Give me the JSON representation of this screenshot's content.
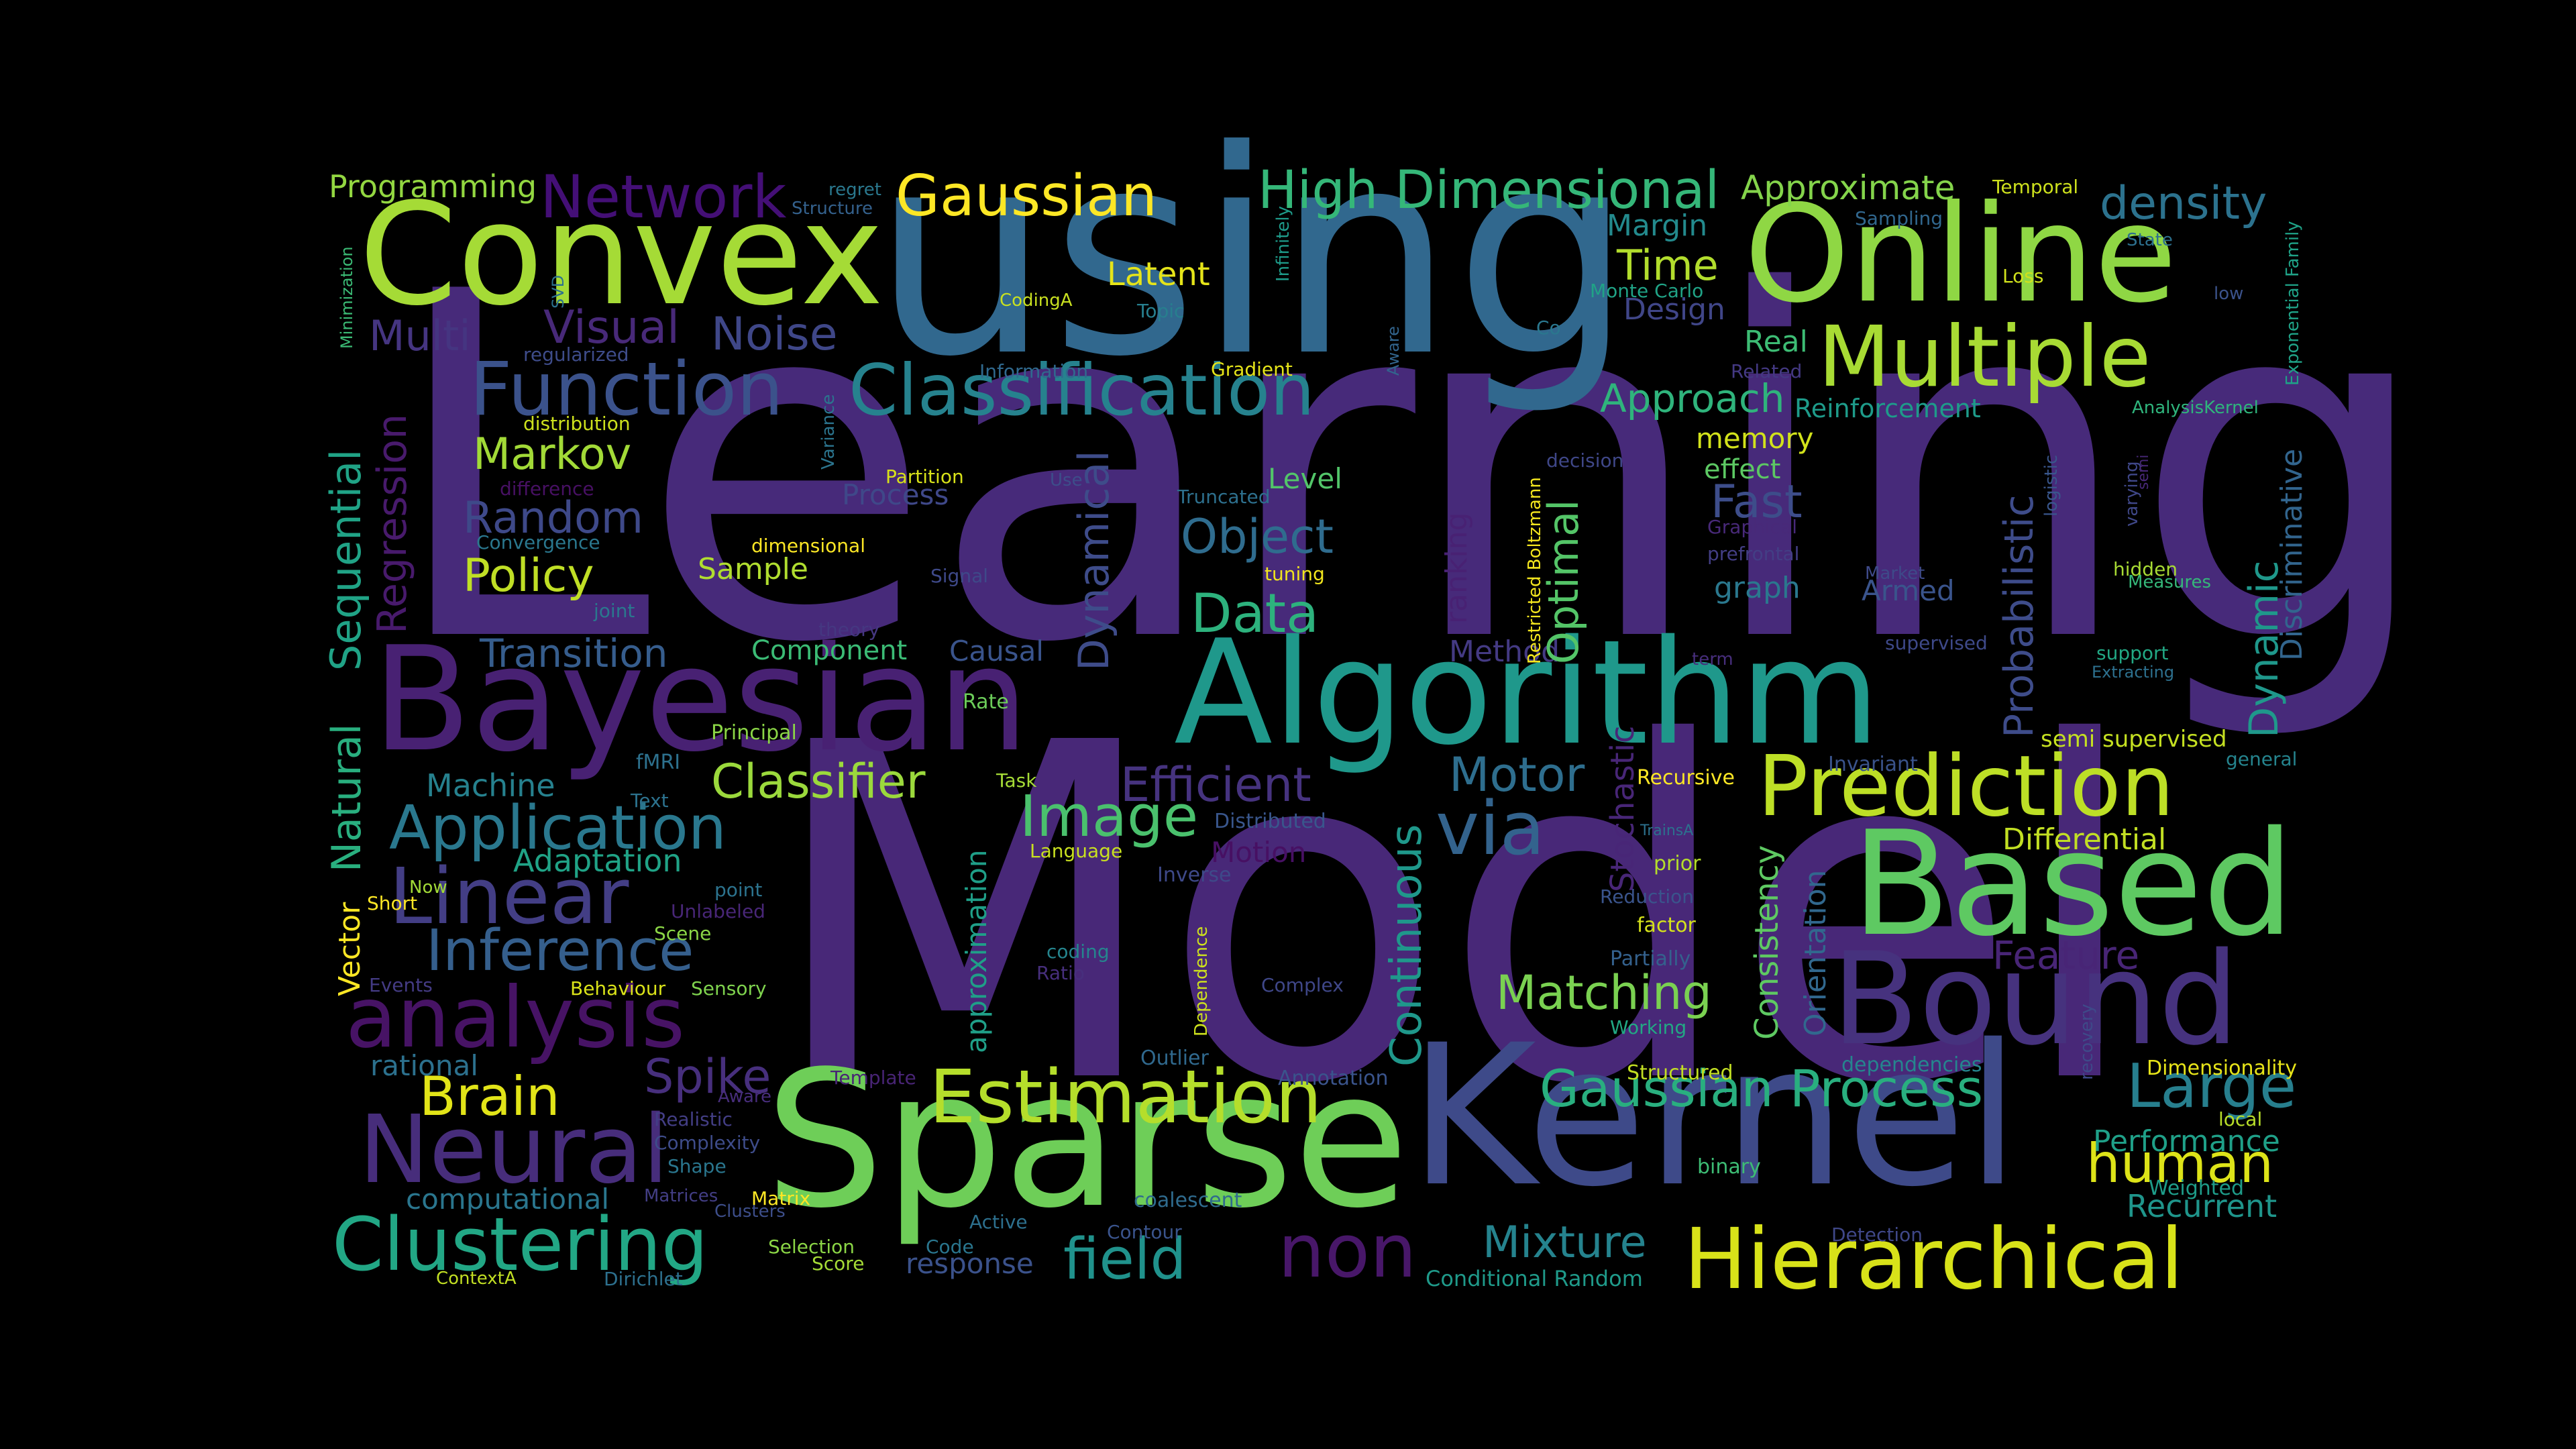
{
  "title": "Word cloud",
  "words": {
    "learning": {
      "text": "Learning",
      "color": "#472a7a"
    },
    "model": {
      "text": "Model",
      "color": "#482878"
    },
    "using": {
      "text": "using",
      "color": "#31688e"
    },
    "convex": {
      "text": "Convex",
      "color": "#a5db36"
    },
    "online": {
      "text": "Online",
      "color": "#8fd744"
    },
    "sparse": {
      "text": "Sparse",
      "color": "#6ece58"
    },
    "kernel": {
      "text": "Kernel",
      "color": "#3e4a89"
    },
    "bayesian": {
      "text": "Bayesian",
      "color": "#482173"
    },
    "algorithm": {
      "text": "Algorithm",
      "color": "#1f988b"
    },
    "based": {
      "text": "Based",
      "color": "#5ec962"
    },
    "bound": {
      "text": "Bound",
      "color": "#46327e"
    },
    "prediction": {
      "text": "Prediction",
      "color": "#bddf26"
    },
    "multiple": {
      "text": "Multiple",
      "color": "#a8db34"
    },
    "classification": {
      "text": "Classification",
      "color": "#26828e"
    },
    "function": {
      "text": "Function",
      "color": "#3b528b"
    },
    "hierarchical": {
      "text": "Hierarchical",
      "color": "#d8e219"
    },
    "estimation": {
      "text": "Estimation",
      "color": "#b5de2b"
    },
    "neural": {
      "text": "Neural",
      "color": "#472d7b"
    },
    "clustering": {
      "text": "Clustering",
      "color": "#22a785"
    },
    "analysis": {
      "text": "analysis",
      "color": "#471365"
    },
    "linear": {
      "text": "Linear",
      "color": "#433e85"
    },
    "inference": {
      "text": "Inference",
      "color": "#355f8d"
    },
    "application": {
      "text": "Application",
      "color": "#2a788e"
    },
    "network": {
      "text": "Network",
      "color": "#440f76"
    },
    "gaussian": {
      "text": "Gaussian",
      "color": "#fde725"
    },
    "high_dimensional": {
      "text": "High Dimensional",
      "color": "#35b779"
    },
    "approximate": {
      "text": "Approximate",
      "color": "#84d44b"
    },
    "density": {
      "text": "density",
      "color": "#2c728e"
    },
    "gaussian_process": {
      "text": "Gaussian Process",
      "color": "#29af7f"
    },
    "large": {
      "text": "Large",
      "color": "#277f8e"
    },
    "human": {
      "text": "human",
      "color": "#dde318"
    },
    "field": {
      "text": "field",
      "color": "#20928c"
    },
    "non": {
      "text": "non",
      "color": "#481769"
    },
    "mixture": {
      "text": "Mixture",
      "color": "#25838e"
    },
    "matching": {
      "text": "Matching",
      "color": "#7ad151"
    },
    "image": {
      "text": "Image",
      "color": "#4ac16d"
    },
    "via": {
      "text": "via",
      "color": "#33638d"
    },
    "motor": {
      "text": "Motor",
      "color": "#2e6e8e"
    },
    "efficient": {
      "text": "Efficient",
      "color": "#46337f"
    },
    "classifier": {
      "text": "Classifier",
      "color": "#9bd93c"
    },
    "brain": {
      "text": "Brain",
      "color": "#e2e418"
    },
    "spike": {
      "text": "Spike",
      "color": "#472f7d"
    },
    "data": {
      "text": "Data",
      "color": "#2db27d"
    },
    "object": {
      "text": "Object",
      "color": "#2f6c8e"
    },
    "policy": {
      "text": "Policy",
      "color": "#c0df25"
    },
    "markov": {
      "text": "Markov",
      "color": "#a2da37"
    },
    "random": {
      "text": "Random",
      "color": "#3e4989"
    },
    "noise": {
      "text": "Noise",
      "color": "#3f4788"
    },
    "multi": {
      "text": "Multi",
      "color": "#453581"
    },
    "visual": {
      "text": "Visual",
      "color": "#482979"
    },
    "time": {
      "text": "Time",
      "color": "#b2dd2d"
    },
    "approach": {
      "text": "Approach",
      "color": "#2fb47c"
    },
    "fast": {
      "text": "Fast",
      "color": "#3d4d8a"
    },
    "transition": {
      "text": "Transition",
      "color": "#365d8d"
    },
    "latent": {
      "text": "Latent",
      "color": "#e5e419"
    },
    "programming": {
      "text": "Programming",
      "color": "#93d741"
    },
    "performance": {
      "text": "Performance",
      "color": "#1fa088"
    },
    "recurrent": {
      "text": "Recurrent",
      "color": "#1f958b"
    },
    "differential": {
      "text": "Differential",
      "color": "#c2df23"
    },
    "feature": {
      "text": "Feature",
      "color": "#482576"
    },
    "adaptation": {
      "text": "Adaptation",
      "color": "#20a386"
    },
    "machine": {
      "text": "Machine",
      "color": "#26818e"
    },
    "component": {
      "text": "Component",
      "color": "#3bbb75"
    },
    "causal": {
      "text": "Causal",
      "color": "#3a548c"
    },
    "sample": {
      "text": "Sample",
      "color": "#b0dd2f"
    },
    "method": {
      "text": "Method",
      "color": "#443a83"
    },
    "margin": {
      "text": "Margin",
      "color": "#238a8d"
    },
    "design": {
      "text": "Design",
      "color": "#404688"
    },
    "real": {
      "text": "Real",
      "color": "#3dbc74"
    },
    "memory": {
      "text": "memory",
      "color": "#d2e21b"
    },
    "effect": {
      "text": "effect",
      "color": "#5cc863"
    },
    "level": {
      "text": "Level",
      "color": "#52c569"
    },
    "motion": {
      "text": "Motion",
      "color": "#471063"
    },
    "reinforcement": {
      "text": "Reinforcement",
      "color": "#1e9b8a"
    },
    "armed": {
      "text": "Armed",
      "color": "#3a548c"
    },
    "graph": {
      "text": "graph",
      "color": "#2a788e"
    },
    "rational": {
      "text": "rational",
      "color": "#2c718e"
    },
    "computational": {
      "text": "computational",
      "color": "#2a768e"
    },
    "response": {
      "text": "response",
      "color": "#3b528b"
    },
    "conditional_random": {
      "text": "Conditional Random",
      "color": "#1f9a8a"
    },
    "process": {
      "text": "Process",
      "color": "#3f4889"
    },
    "rate": {
      "text": "Rate",
      "color": "#6ccd5a"
    },
    "principal": {
      "text": "Principal",
      "color": "#8bd646"
    },
    "fmri": {
      "text": "fMRI",
      "color": "#2d718e"
    },
    "text": {
      "text": "Text",
      "color": "#2c728e"
    },
    "task": {
      "text": "Task",
      "color": "#a5db36"
    },
    "recursive": {
      "text": "Recursive",
      "color": "#fde725"
    },
    "invariant": {
      "text": "Invariant",
      "color": "#3a538b"
    },
    "semi_supervised": {
      "text": "semi supervised",
      "color": "#c5e021"
    },
    "general": {
      "text": "general",
      "color": "#25848e"
    },
    "distributed": {
      "text": "Distributed",
      "color": "#39568c"
    },
    "language": {
      "text": "Language",
      "color": "#c8e020"
    },
    "inverse": {
      "text": "Inverse",
      "color": "#3e4989"
    },
    "prior": {
      "text": "prior",
      "color": "#b5de2b"
    },
    "reduction": {
      "text": "Reduction",
      "color": "#3a548c"
    },
    "factor": {
      "text": "factor",
      "color": "#d5e21a"
    },
    "partially": {
      "text": "Partially",
      "color": "#34618d"
    },
    "working": {
      "text": "Working",
      "color": "#22a884"
    },
    "structured": {
      "text": "Structured",
      "color": "#c2df23"
    },
    "dependencies": {
      "text": "dependencies",
      "color": "#25858e"
    },
    "binary": {
      "text": "binary",
      "color": "#3dbc74"
    },
    "weighted": {
      "text": "Weighted",
      "color": "#1e9c89"
    },
    "local": {
      "text": "local",
      "color": "#b8de29"
    },
    "dimensionality": {
      "text": "Dimensionality",
      "color": "#e7e419"
    },
    "detection": {
      "text": "Detection",
      "color": "#3f4788"
    },
    "coalescent": {
      "text": "coalescent",
      "color": "#2f6b8e"
    },
    "annotation": {
      "text": "Annotation",
      "color": "#3a548c"
    },
    "outlier": {
      "text": "Outlier",
      "color": "#30698e"
    },
    "active": {
      "text": "Active",
      "color": "#2d708e"
    },
    "contour": {
      "text": "Contour",
      "color": "#3a548c"
    },
    "code": {
      "text": "Code",
      "color": "#2a768e"
    },
    "template": {
      "text": "Template",
      "color": "#482475"
    },
    "complex": {
      "text": "Complex",
      "color": "#3f4788"
    },
    "ratio": {
      "text": "Ratio",
      "color": "#472f7d"
    },
    "coding": {
      "text": "coding",
      "color": "#25858e"
    },
    "scene": {
      "text": "Scene",
      "color": "#8bd646"
    },
    "sensory": {
      "text": "Sensory",
      "color": "#7fd34e"
    },
    "behaviour": {
      "text": "Behaviour",
      "color": "#dae319"
    },
    "short": {
      "text": "Short",
      "color": "#fde725"
    },
    "events": {
      "text": "Events",
      "color": "#443b84"
    },
    "unlabeled": {
      "text": "Unlabeled",
      "color": "#482677"
    },
    "point": {
      "text": "point",
      "color": "#2c738e"
    },
    "now": {
      "text": "Now",
      "color": "#a2da37"
    },
    "aware": {
      "text": "Aware",
      "color": "#472d7b"
    },
    "realistic": {
      "text": "Realistic",
      "color": "#433e85"
    },
    "complexity": {
      "text": "Complexity",
      "color": "#3e4c8a"
    },
    "shape": {
      "text": "Shape",
      "color": "#2a768e"
    },
    "matrices": {
      "text": "Matrices",
      "color": "#433e85"
    },
    "clusters": {
      "text": "Clusters",
      "color": "#3d4e8a"
    },
    "matrix": {
      "text": "Matrix",
      "color": "#fde725"
    },
    "selection": {
      "text": "Selection",
      "color": "#8bd646"
    },
    "score": {
      "text": "Score",
      "color": "#a5db36"
    },
    "dirichlet": {
      "text": "Dirichlet",
      "color": "#2d708e"
    },
    "contexta": {
      "text": "ContextA",
      "color": "#c2df23"
    },
    "regret": {
      "text": "regret",
      "color": "#2a788e"
    },
    "structure": {
      "text": "Structure",
      "color": "#34618d"
    },
    "sampling": {
      "text": "Sampling",
      "color": "#31678e"
    },
    "temporal": {
      "text": "Temporal",
      "color": "#cde11d"
    },
    "loss": {
      "text": "Loss",
      "color": "#d0e11c"
    },
    "low": {
      "text": "low",
      "color": "#3b528b"
    },
    "state": {
      "text": "State",
      "color": "#2d708e"
    },
    "monte_carlo": {
      "text": "Monte Carlo",
      "color": "#20a386"
    },
    "co": {
      "text": "Co",
      "color": "#2a778e"
    },
    "related": {
      "text": "Related",
      "color": "#443983"
    },
    "topic": {
      "text": "Topic",
      "color": "#277f8e"
    },
    "codinga": {
      "text": "CodingA",
      "color": "#c8e020"
    },
    "information": {
      "text": "Information",
      "color": "#30698e"
    },
    "gradient": {
      "text": "Gradient",
      "color": "#e5e419"
    },
    "regularized": {
      "text": "regularized",
      "color": "#3e4c8a"
    },
    "distribution": {
      "text": "distribution",
      "color": "#cde11d"
    },
    "difference": {
      "text": "difference",
      "color": "#471063"
    },
    "convergence": {
      "text": "Convergence",
      "color": "#2a778e"
    },
    "partition": {
      "text": "Partition",
      "color": "#d8e219"
    },
    "use": {
      "text": "Use",
      "color": "#3d4e8a"
    },
    "truncated": {
      "text": "Truncated",
      "color": "#2d708e"
    },
    "dimensional": {
      "text": "dimensional",
      "color": "#fde725"
    },
    "signal": {
      "text": "Signal",
      "color": "#3e4989"
    },
    "tuning": {
      "text": "tuning",
      "color": "#f1e51d"
    },
    "joint": {
      "text": "joint",
      "color": "#2a788e"
    },
    "theory": {
      "text": "theory",
      "color": "#453781"
    },
    "decision": {
      "text": "decision",
      "color": "#3f4788"
    },
    "graphical": {
      "text": "Graphical",
      "color": "#482979"
    },
    "prefrontal": {
      "text": "prefrontal",
      "color": "#433e85"
    },
    "market": {
      "text": "Market",
      "color": "#3e4a89"
    },
    "hidden": {
      "text": "hidden",
      "color": "#a8db34"
    },
    "measures": {
      "text": "Measures",
      "color": "#35b779"
    },
    "supervised": {
      "text": "supervised",
      "color": "#3e4989"
    },
    "support": {
      "text": "support",
      "color": "#22a884"
    },
    "extracting": {
      "text": "Extracting",
      "color": "#2d708e"
    },
    "term": {
      "text": "term",
      "color": "#472e7c"
    },
    "analysiskernel": {
      "text": "AnalysisKernel",
      "color": "#2fb47c"
    },
    "trainsa": {
      "text": "TrainsA",
      "color": "#2c718e"
    },
    "minimization": {
      "text": "Minimization",
      "color": "#3bbb75"
    },
    "svd": {
      "text": "SVD",
      "color": "#2c718e"
    },
    "infinitely": {
      "text": "Infinitely",
      "color": "#1e9b8a"
    },
    "variance": {
      "text": "Variance",
      "color": "#2b748e"
    },
    "aware2": {
      "text": "Aware",
      "color": "#32658e"
    },
    "restricted_boltzmann": {
      "text": "Restricted Boltzmann",
      "color": "#f4e61e"
    },
    "exponential_family": {
      "text": "Exponential Family",
      "color": "#1fa287"
    },
    "logistic": {
      "text": "logistic",
      "color": "#39568c"
    },
    "varying": {
      "text": "varying",
      "color": "#3f4788"
    },
    "semi": {
      "text": "semi",
      "color": "#482878"
    },
    "recovery": {
      "text": "recovery",
      "color": "#3e4a89"
    },
    "dependence": {
      "text": "Dependence",
      "color": "#cde11d"
    },
    "learning_small_vert": {
      "text": "Sequential",
      "color": "#20a386"
    },
    "natural": {
      "text": "Natural",
      "color": "#29af7f"
    },
    "vector": {
      "text": "Vector",
      "color": "#fde725"
    },
    "regression": {
      "text": "Regression",
      "color": "#481a6c"
    },
    "dynamical": {
      "text": "Dynamical",
      "color": "#3e4c8a"
    },
    "continuous": {
      "text": "Continuous",
      "color": "#1f988b"
    },
    "optimal": {
      "text": "Optimal",
      "color": "#54c568"
    },
    "ranking": {
      "text": "ranking",
      "color": "#482173"
    },
    "stochastic": {
      "text": "Stochastic",
      "color": "#482677"
    },
    "probabilistic": {
      "text": "Probabilistic",
      "color": "#3e4c8a"
    },
    "consistency": {
      "text": "Consistency",
      "color": "#5ec962"
    },
    "orientation": {
      "text": "Orientation",
      "color": "#31688e"
    },
    "dynamic": {
      "text": "Dynamic",
      "color": "#1f988b"
    },
    "discriminative": {
      "text": "Discriminative",
      "color": "#32658e"
    },
    "approximation": {
      "text": "approximation",
      "color": "#1f9f88"
    }
  }
}
